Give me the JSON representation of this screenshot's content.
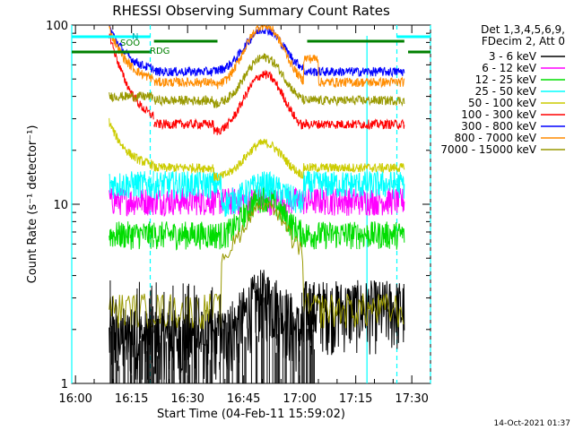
{
  "chart_data": {
    "type": "line",
    "title": "RHESSI Observing Summary Count Rates",
    "xlabel": "Start Time (04-Feb-11 15:59:02)",
    "ylabel": "Count Rate (s⁻¹ detector⁻¹)",
    "yscale": "log",
    "xlim_minutes": [
      0,
      36
    ],
    "ylim": [
      1,
      100
    ],
    "x_tick_labels": [
      "16:00",
      "16:15",
      "16:30",
      "16:45",
      "17:00",
      "17:15",
      "17:30"
    ],
    "x_tick_minutes": [
      1,
      16,
      31,
      46,
      61,
      76,
      91
    ],
    "y_tick_labels": [
      "1",
      "10",
      "100"
    ],
    "y_tick_values": [
      1,
      10,
      100
    ],
    "legend_header": [
      "Det 1,3,4,5,6,9,",
      "FDecim 2, Att 0"
    ],
    "flag_labels": [
      "N",
      "SOO",
      "RDG"
    ],
    "timestamp": "14-Oct-2021 01:37",
    "series": [
      {
        "name": "3 - 6 keV",
        "color": "#000000",
        "base": 1.8
      },
      {
        "name": "6 - 12 keV",
        "color": "#ff00ff",
        "base": 10.5
      },
      {
        "name": "12 - 25 keV",
        "color": "#00dd00",
        "base": 6.8
      },
      {
        "name": "25 - 50 keV",
        "color": "#00ffff",
        "base": 13
      },
      {
        "name": "50 - 100 keV",
        "color": "#cccc00",
        "base": 16
      },
      {
        "name": "100 - 300 keV",
        "color": "#ff0000",
        "base": 28
      },
      {
        "name": "300 - 800 keV",
        "color": "#0000ff",
        "base": 55
      },
      {
        "name": "800 - 7000 keV",
        "color": "#ff8c00",
        "base": 48
      },
      {
        "name": "7000 - 15000 keV",
        "color": "#999900",
        "base": 38
      }
    ]
  }
}
